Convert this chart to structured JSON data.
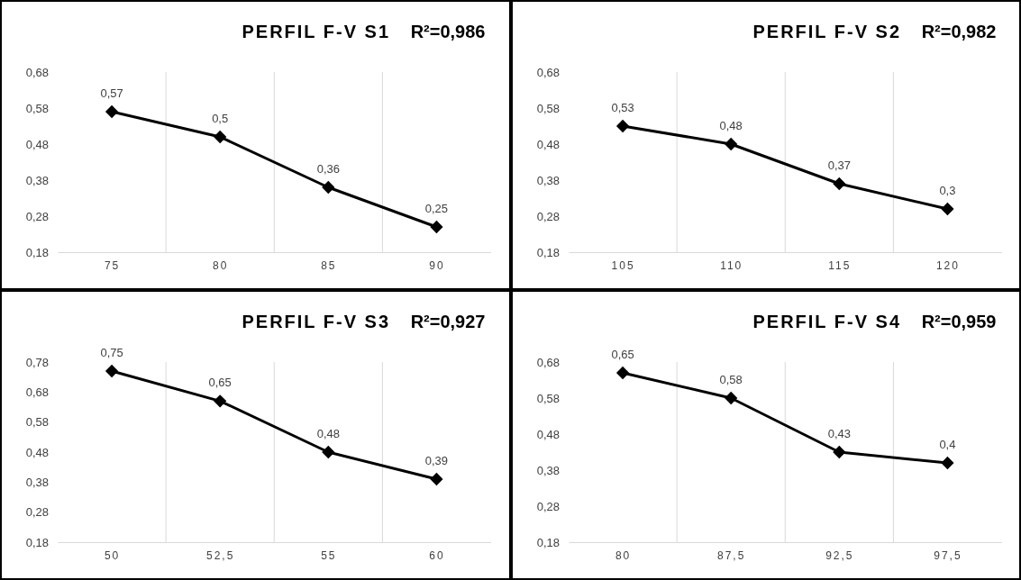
{
  "chart_data": [
    {
      "type": "line",
      "title": "PERFIL F-V S1",
      "annotations": [
        "R²=0,986"
      ],
      "categories": [
        "75",
        "80",
        "85",
        "90"
      ],
      "series": [
        {
          "color": "#000000",
          "values": [
            0.57,
            0.5,
            0.36,
            0.25
          ],
          "value_labels": [
            "0,57",
            "0,5",
            "0,36",
            "0,25"
          ]
        }
      ],
      "ylim": [
        0.18,
        0.68
      ],
      "yticks": [
        {
          "value": 0.18,
          "label": "0,18"
        },
        {
          "value": 0.28,
          "label": "0,28"
        },
        {
          "value": 0.38,
          "label": "0,38"
        },
        {
          "value": 0.48,
          "label": "0,48"
        },
        {
          "value": 0.58,
          "label": "0,58"
        },
        {
          "value": 0.68,
          "label": "0,68"
        }
      ],
      "grid": "x",
      "marker": "diamond",
      "line_style": "solid"
    },
    {
      "type": "line",
      "title": "PERFIL F-V S2",
      "annotations": [
        "R²=0,982"
      ],
      "categories": [
        "105",
        "110",
        "115",
        "120"
      ],
      "series": [
        {
          "color": "#000000",
          "values": [
            0.53,
            0.48,
            0.37,
            0.3
          ],
          "value_labels": [
            "0,53",
            "0,48",
            "0,37",
            "0,3"
          ]
        }
      ],
      "ylim": [
        0.18,
        0.68
      ],
      "yticks": [
        {
          "value": 0.18,
          "label": "0,18"
        },
        {
          "value": 0.28,
          "label": "0,28"
        },
        {
          "value": 0.38,
          "label": "0,38"
        },
        {
          "value": 0.48,
          "label": "0,48"
        },
        {
          "value": 0.58,
          "label": "0,58"
        },
        {
          "value": 0.68,
          "label": "0,68"
        }
      ],
      "grid": "x",
      "marker": "diamond",
      "line_style": "solid"
    },
    {
      "type": "line",
      "title": "PERFIL F-V S3",
      "annotations": [
        "R²=0,927"
      ],
      "categories": [
        "50",
        "52,5",
        "55",
        "60"
      ],
      "series": [
        {
          "color": "#000000",
          "values": [
            0.75,
            0.65,
            0.48,
            0.39
          ],
          "value_labels": [
            "0,75",
            "0,65",
            "0,48",
            "0,39"
          ]
        }
      ],
      "ylim": [
        0.18,
        0.78
      ],
      "yticks": [
        {
          "value": 0.18,
          "label": "0,18"
        },
        {
          "value": 0.28,
          "label": "0,28"
        },
        {
          "value": 0.38,
          "label": "0,38"
        },
        {
          "value": 0.48,
          "label": "0,48"
        },
        {
          "value": 0.58,
          "label": "0,58"
        },
        {
          "value": 0.68,
          "label": "0,68"
        },
        {
          "value": 0.78,
          "label": "0,78"
        }
      ],
      "grid": "x",
      "marker": "diamond",
      "line_style": "solid"
    },
    {
      "type": "line",
      "title": "PERFIL F-V S4",
      "annotations": [
        "R²=0,959"
      ],
      "categories": [
        "80",
        "87,5",
        "92,5",
        "97,5"
      ],
      "series": [
        {
          "color": "#000000",
          "values": [
            0.65,
            0.58,
            0.43,
            0.4
          ],
          "value_labels": [
            "0,65",
            "0,58",
            "0,43",
            "0,4"
          ]
        }
      ],
      "ylim": [
        0.18,
        0.68
      ],
      "yticks": [
        {
          "value": 0.18,
          "label": "0,18"
        },
        {
          "value": 0.28,
          "label": "0,28"
        },
        {
          "value": 0.38,
          "label": "0,38"
        },
        {
          "value": 0.48,
          "label": "0,48"
        },
        {
          "value": 0.58,
          "label": "0,58"
        },
        {
          "value": 0.68,
          "label": "0,68"
        }
      ],
      "grid": "x",
      "marker": "diamond",
      "line_style": "solid"
    }
  ]
}
